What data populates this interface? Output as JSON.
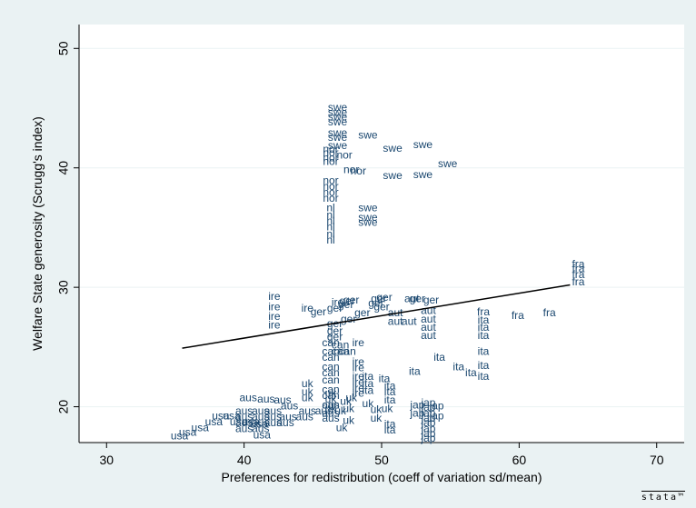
{
  "chart_data": {
    "type": "scatter",
    "title": "",
    "xlabel": "Preferences for redistribution (coeff of variation sd/mean)",
    "ylabel": "Welfare State generosity (Scrugg's index)",
    "xlim": [
      28,
      72
    ],
    "ylim": [
      17,
      52
    ],
    "xticks": [
      30,
      40,
      50,
      60,
      70
    ],
    "yticks": [
      20,
      30,
      40,
      50
    ],
    "grid": "horizontal",
    "marker": "country-label",
    "points": [
      {
        "label": "swe",
        "x": 46.8,
        "y": 45.0
      },
      {
        "label": "swe",
        "x": 46.8,
        "y": 44.6
      },
      {
        "label": "swe",
        "x": 46.8,
        "y": 44.2
      },
      {
        "label": "swe",
        "x": 46.8,
        "y": 43.8
      },
      {
        "label": "swe",
        "x": 46.8,
        "y": 42.9
      },
      {
        "label": "swe",
        "x": 46.8,
        "y": 42.5
      },
      {
        "label": "swe",
        "x": 46.8,
        "y": 41.8
      },
      {
        "label": "swe",
        "x": 49.0,
        "y": 42.7
      },
      {
        "label": "swe",
        "x": 50.8,
        "y": 41.6
      },
      {
        "label": "swe",
        "x": 53.0,
        "y": 41.9
      },
      {
        "label": "swe",
        "x": 54.8,
        "y": 40.3
      },
      {
        "label": "swe",
        "x": 50.8,
        "y": 39.3
      },
      {
        "label": "swe",
        "x": 53.0,
        "y": 39.4
      },
      {
        "label": "swe",
        "x": 49.0,
        "y": 36.6
      },
      {
        "label": "swe",
        "x": 49.0,
        "y": 35.8
      },
      {
        "label": "swe",
        "x": 49.0,
        "y": 35.4
      },
      {
        "label": "nor",
        "x": 46.3,
        "y": 41.5
      },
      {
        "label": "nor",
        "x": 46.3,
        "y": 41.2
      },
      {
        "label": "nor",
        "x": 46.3,
        "y": 40.8
      },
      {
        "label": "nor",
        "x": 46.3,
        "y": 40.5
      },
      {
        "label": "nor",
        "x": 47.3,
        "y": 41.0
      },
      {
        "label": "nor",
        "x": 47.8,
        "y": 39.8
      },
      {
        "label": "nor",
        "x": 48.3,
        "y": 39.7
      },
      {
        "label": "nor",
        "x": 46.3,
        "y": 38.9
      },
      {
        "label": "nor",
        "x": 46.3,
        "y": 38.4
      },
      {
        "label": "nor",
        "x": 46.3,
        "y": 37.9
      },
      {
        "label": "nor",
        "x": 46.3,
        "y": 37.4
      },
      {
        "label": "nl",
        "x": 46.3,
        "y": 36.6
      },
      {
        "label": "nl",
        "x": 46.3,
        "y": 36.0
      },
      {
        "label": "nl",
        "x": 46.3,
        "y": 35.5
      },
      {
        "label": "nl",
        "x": 46.3,
        "y": 35.0
      },
      {
        "label": "nl",
        "x": 46.3,
        "y": 34.4
      },
      {
        "label": "nl",
        "x": 46.3,
        "y": 33.9
      },
      {
        "label": "fra",
        "x": 64.3,
        "y": 31.9
      },
      {
        "label": "fra",
        "x": 64.3,
        "y": 31.5
      },
      {
        "label": "fra",
        "x": 64.3,
        "y": 31.0
      },
      {
        "label": "fra",
        "x": 64.3,
        "y": 30.4
      },
      {
        "label": "fra",
        "x": 57.4,
        "y": 27.9
      },
      {
        "label": "fra",
        "x": 59.9,
        "y": 27.6
      },
      {
        "label": "fra",
        "x": 62.2,
        "y": 27.8
      },
      {
        "label": "ire",
        "x": 42.2,
        "y": 29.2
      },
      {
        "label": "ire",
        "x": 42.2,
        "y": 28.3
      },
      {
        "label": "ire",
        "x": 42.2,
        "y": 27.5
      },
      {
        "label": "ire",
        "x": 42.2,
        "y": 26.8
      },
      {
        "label": "ire",
        "x": 44.6,
        "y": 28.2
      },
      {
        "label": "ire",
        "x": 46.8,
        "y": 28.7
      },
      {
        "label": "ire",
        "x": 48.3,
        "y": 25.3
      },
      {
        "label": "ire",
        "x": 48.3,
        "y": 23.7
      },
      {
        "label": "ire",
        "x": 48.3,
        "y": 23.2
      },
      {
        "label": "ire",
        "x": 48.3,
        "y": 22.5
      },
      {
        "label": "ire",
        "x": 48.3,
        "y": 22.0
      },
      {
        "label": "ire",
        "x": 48.3,
        "y": 21.5
      },
      {
        "label": "ire",
        "x": 48.3,
        "y": 21.1
      },
      {
        "label": "ger",
        "x": 45.4,
        "y": 27.9
      },
      {
        "label": "ger",
        "x": 46.6,
        "y": 28.2
      },
      {
        "label": "ger",
        "x": 47.4,
        "y": 28.5
      },
      {
        "label": "ger",
        "x": 47.5,
        "y": 28.8
      },
      {
        "label": "ger",
        "x": 47.8,
        "y": 28.9
      },
      {
        "label": "ger",
        "x": 49.8,
        "y": 29.0
      },
      {
        "label": "ger",
        "x": 50.2,
        "y": 29.1
      },
      {
        "label": "ger",
        "x": 49.6,
        "y": 28.6
      },
      {
        "label": "ger",
        "x": 48.6,
        "y": 27.8
      },
      {
        "label": "ger",
        "x": 47.6,
        "y": 27.3
      },
      {
        "label": "ger",
        "x": 46.6,
        "y": 26.9
      },
      {
        "label": "ger",
        "x": 46.6,
        "y": 26.3
      },
      {
        "label": "ger",
        "x": 46.6,
        "y": 25.8
      },
      {
        "label": "ger",
        "x": 50.0,
        "y": 28.3
      },
      {
        "label": "ger",
        "x": 52.6,
        "y": 29.0
      },
      {
        "label": "ger",
        "x": 53.6,
        "y": 28.9
      },
      {
        "label": "aut",
        "x": 52.2,
        "y": 29.0
      },
      {
        "label": "aut",
        "x": 53.4,
        "y": 28.0
      },
      {
        "label": "aut",
        "x": 53.4,
        "y": 27.3
      },
      {
        "label": "aut",
        "x": 53.4,
        "y": 26.6
      },
      {
        "label": "aut",
        "x": 53.4,
        "y": 25.9
      },
      {
        "label": "aut",
        "x": 52.0,
        "y": 27.1
      },
      {
        "label": "aut",
        "x": 51.0,
        "y": 27.8
      },
      {
        "label": "aut",
        "x": 51.0,
        "y": 27.1
      },
      {
        "label": "ita",
        "x": 57.4,
        "y": 27.2
      },
      {
        "label": "ita",
        "x": 57.4,
        "y": 26.6
      },
      {
        "label": "ita",
        "x": 57.4,
        "y": 25.9
      },
      {
        "label": "ita",
        "x": 57.4,
        "y": 24.6
      },
      {
        "label": "ita",
        "x": 57.4,
        "y": 23.4
      },
      {
        "label": "ita",
        "x": 57.4,
        "y": 22.5
      },
      {
        "label": "ita",
        "x": 54.2,
        "y": 24.1
      },
      {
        "label": "ita",
        "x": 55.6,
        "y": 23.3
      },
      {
        "label": "ita",
        "x": 56.5,
        "y": 22.8
      },
      {
        "label": "ita",
        "x": 52.4,
        "y": 22.9
      },
      {
        "label": "ita",
        "x": 50.2,
        "y": 22.3
      },
      {
        "label": "ita",
        "x": 49.0,
        "y": 22.5
      },
      {
        "label": "ita",
        "x": 49.0,
        "y": 21.9
      },
      {
        "label": "ita",
        "x": 49.0,
        "y": 21.3
      },
      {
        "label": "ita",
        "x": 50.6,
        "y": 21.7
      },
      {
        "label": "ita",
        "x": 50.6,
        "y": 21.2
      },
      {
        "label": "ita",
        "x": 50.6,
        "y": 20.5
      },
      {
        "label": "ita",
        "x": 50.6,
        "y": 18.5
      },
      {
        "label": "ita",
        "x": 50.6,
        "y": 18.0
      },
      {
        "label": "can",
        "x": 46.3,
        "y": 25.3
      },
      {
        "label": "can",
        "x": 46.3,
        "y": 24.6
      },
      {
        "label": "can",
        "x": 46.3,
        "y": 24.1
      },
      {
        "label": "can",
        "x": 46.3,
        "y": 23.3
      },
      {
        "label": "can",
        "x": 46.3,
        "y": 22.8
      },
      {
        "label": "can",
        "x": 46.3,
        "y": 22.2
      },
      {
        "label": "can",
        "x": 47.0,
        "y": 25.1
      },
      {
        "label": "can",
        "x": 47.0,
        "y": 24.6
      },
      {
        "label": "can",
        "x": 46.3,
        "y": 21.4
      },
      {
        "label": "can",
        "x": 46.3,
        "y": 20.9
      },
      {
        "label": "can",
        "x": 46.3,
        "y": 20.1
      },
      {
        "label": "can",
        "x": 47.5,
        "y": 24.6
      },
      {
        "label": "uk",
        "x": 44.6,
        "y": 21.9
      },
      {
        "label": "uk",
        "x": 44.6,
        "y": 21.2
      },
      {
        "label": "uk",
        "x": 44.6,
        "y": 20.7
      },
      {
        "label": "uk",
        "x": 46.3,
        "y": 21.1
      },
      {
        "label": "uk",
        "x": 46.3,
        "y": 20.6
      },
      {
        "label": "uk",
        "x": 46.3,
        "y": 19.8
      },
      {
        "label": "uk",
        "x": 47.0,
        "y": 19.6
      },
      {
        "label": "uk",
        "x": 47.4,
        "y": 20.4
      },
      {
        "label": "uk",
        "x": 47.8,
        "y": 20.7
      },
      {
        "label": "uk",
        "x": 47.6,
        "y": 19.8
      },
      {
        "label": "uk",
        "x": 47.6,
        "y": 18.8
      },
      {
        "label": "uk",
        "x": 47.1,
        "y": 18.2
      },
      {
        "label": "uk",
        "x": 49.0,
        "y": 20.2
      },
      {
        "label": "uk",
        "x": 49.6,
        "y": 19.7
      },
      {
        "label": "uk",
        "x": 49.6,
        "y": 19.0
      },
      {
        "label": "uk",
        "x": 50.4,
        "y": 19.8
      },
      {
        "label": "aus",
        "x": 40.3,
        "y": 20.7
      },
      {
        "label": "aus",
        "x": 41.6,
        "y": 20.6
      },
      {
        "label": "aus",
        "x": 42.8,
        "y": 20.5
      },
      {
        "label": "aus",
        "x": 43.3,
        "y": 20.0
      },
      {
        "label": "aus",
        "x": 44.6,
        "y": 19.6
      },
      {
        "label": "aus",
        "x": 45.8,
        "y": 19.6
      },
      {
        "label": "aus",
        "x": 46.3,
        "y": 20.1
      },
      {
        "label": "aus",
        "x": 46.3,
        "y": 19.4
      },
      {
        "label": "aus",
        "x": 46.3,
        "y": 19.0
      },
      {
        "label": "aus",
        "x": 40.0,
        "y": 19.6
      },
      {
        "label": "aus",
        "x": 40.0,
        "y": 19.1
      },
      {
        "label": "aus",
        "x": 40.0,
        "y": 18.6
      },
      {
        "label": "aus",
        "x": 41.2,
        "y": 19.6
      },
      {
        "label": "aus",
        "x": 41.2,
        "y": 19.1
      },
      {
        "label": "aus",
        "x": 41.2,
        "y": 18.6
      },
      {
        "label": "aus",
        "x": 42.1,
        "y": 19.6
      },
      {
        "label": "aus",
        "x": 42.1,
        "y": 19.1
      },
      {
        "label": "aus",
        "x": 42.1,
        "y": 18.6
      },
      {
        "label": "aus",
        "x": 40.0,
        "y": 18.1
      },
      {
        "label": "aus",
        "x": 43.2,
        "y": 19.1
      },
      {
        "label": "aus",
        "x": 41.2,
        "y": 18.1
      },
      {
        "label": "aus",
        "x": 44.4,
        "y": 19.1
      },
      {
        "label": "aus",
        "x": 43.0,
        "y": 18.6
      },
      {
        "label": "usa",
        "x": 38.3,
        "y": 19.2
      },
      {
        "label": "usa",
        "x": 39.1,
        "y": 19.2
      },
      {
        "label": "usa",
        "x": 37.8,
        "y": 18.7
      },
      {
        "label": "usa",
        "x": 36.8,
        "y": 18.2
      },
      {
        "label": "usa",
        "x": 35.9,
        "y": 17.8
      },
      {
        "label": "usa",
        "x": 35.3,
        "y": 17.5
      },
      {
        "label": "usa",
        "x": 39.6,
        "y": 18.7
      },
      {
        "label": "usa",
        "x": 40.5,
        "y": 18.7
      },
      {
        "label": "usa",
        "x": 41.1,
        "y": 18.5
      },
      {
        "label": "usa",
        "x": 41.3,
        "y": 17.6
      },
      {
        "label": "jap",
        "x": 53.4,
        "y": 20.3
      },
      {
        "label": "jap",
        "x": 53.4,
        "y": 19.9
      },
      {
        "label": "jap",
        "x": 53.4,
        "y": 19.4
      },
      {
        "label": "jap",
        "x": 53.4,
        "y": 19.0
      },
      {
        "label": "jap",
        "x": 53.4,
        "y": 18.6
      },
      {
        "label": "jap",
        "x": 53.4,
        "y": 18.1
      },
      {
        "label": "jap",
        "x": 53.4,
        "y": 17.7
      },
      {
        "label": "jap",
        "x": 53.4,
        "y": 17.3
      },
      {
        "label": "jap",
        "x": 52.6,
        "y": 20.1
      },
      {
        "label": "jap",
        "x": 52.6,
        "y": 19.4
      },
      {
        "label": "jap",
        "x": 54.0,
        "y": 20.0
      },
      {
        "label": "jap",
        "x": 54.0,
        "y": 19.2
      }
    ],
    "fit_line": {
      "x": [
        35.5,
        63.7
      ],
      "y": [
        24.9,
        30.2
      ]
    }
  },
  "branding": {
    "logo_text": "stata™"
  }
}
